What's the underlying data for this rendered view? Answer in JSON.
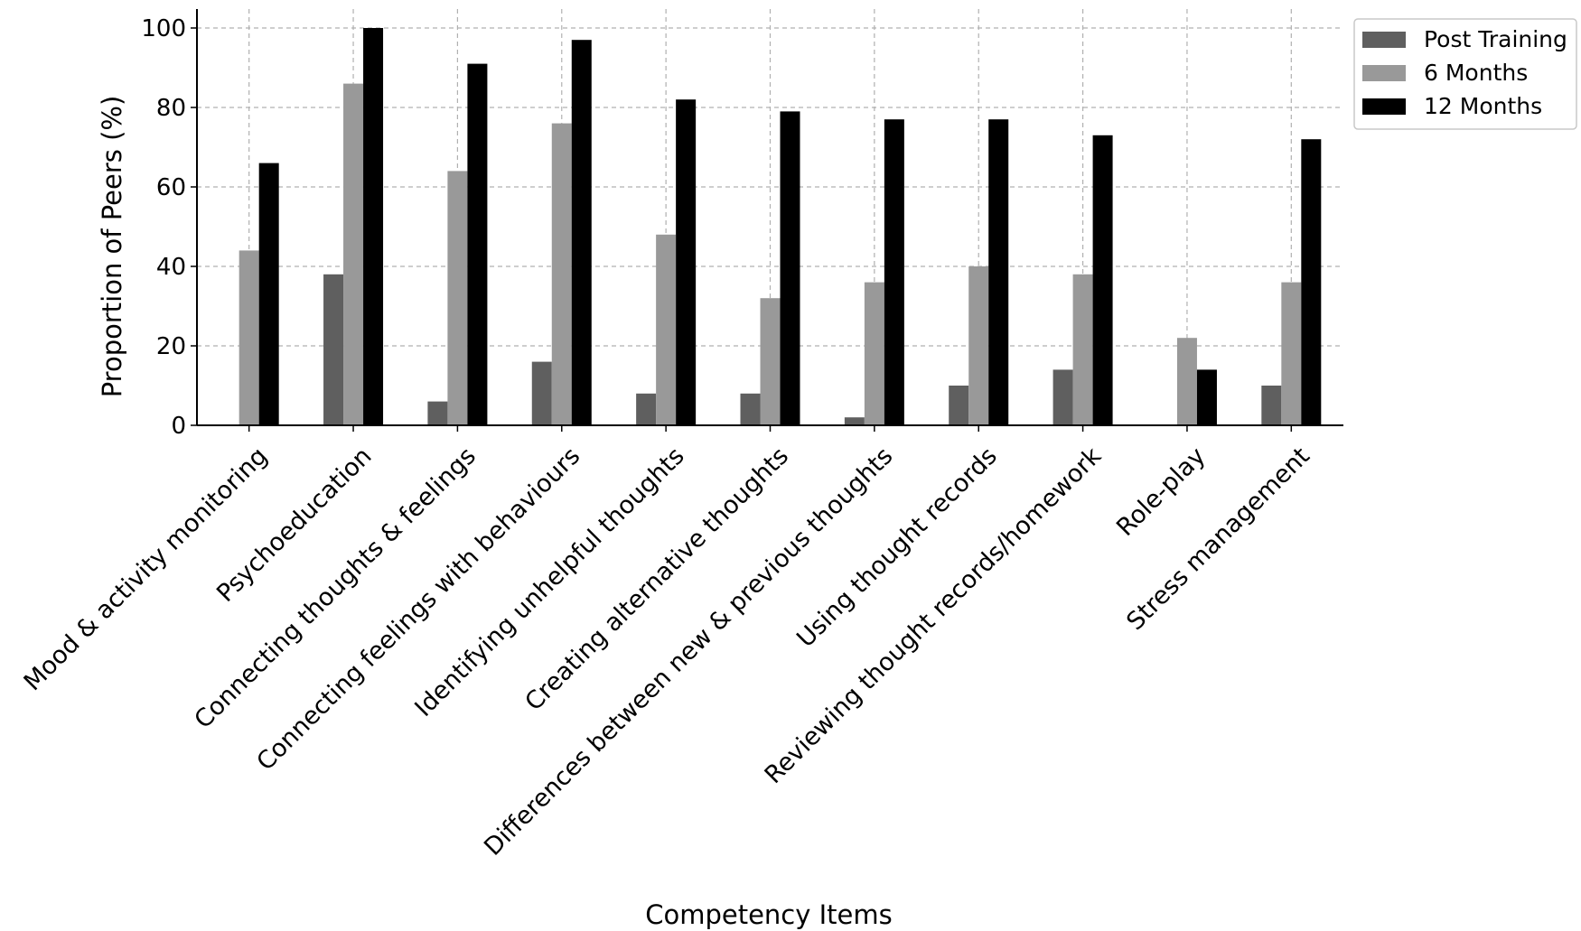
{
  "chart_data": {
    "type": "bar",
    "title": "",
    "xlabel": "Competency Items",
    "ylabel": "Proportion of Peers (%)",
    "ylim": [
      0,
      100
    ],
    "yticks": [
      0,
      20,
      40,
      60,
      80,
      100
    ],
    "grid": true,
    "legend_position": "top-right, outside plot",
    "categories": [
      "Mood & activity monitoring",
      "Psychoeducation",
      "Connecting thoughts & feelings",
      "Connecting feelings with behaviours",
      "Identifying unhelpful thoughts",
      "Creating alternative thoughts",
      "Differences between new & previous thoughts",
      "Using thought records",
      "Reviewing thought records/homework",
      "Role-play",
      "Stress management"
    ],
    "series": [
      {
        "name": "Post Training",
        "color": "#5f5f5f",
        "values": [
          0,
          38,
          6,
          16,
          8,
          8,
          2,
          10,
          14,
          0,
          10
        ]
      },
      {
        "name": "6 Months",
        "color": "#999999",
        "values": [
          44,
          86,
          64,
          76,
          48,
          32,
          36,
          40,
          38,
          22,
          36
        ]
      },
      {
        "name": "12 Months",
        "color": "#000000",
        "values": [
          66,
          100,
          91,
          97,
          82,
          79,
          77,
          77,
          73,
          14,
          72
        ]
      }
    ]
  }
}
